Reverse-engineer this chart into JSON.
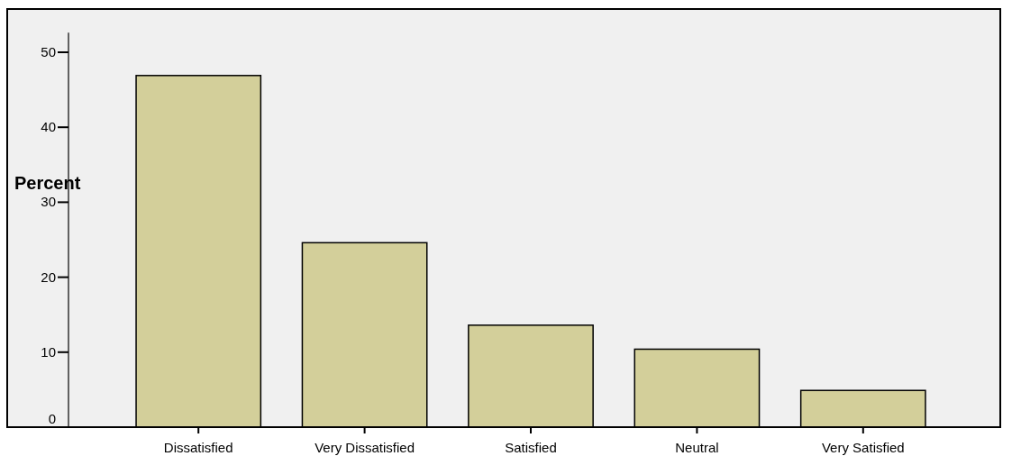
{
  "chart_data": {
    "type": "bar",
    "ylabel": "Percent",
    "categories": [
      "Dissatisfied",
      "Very Dissatisfied",
      "Satisfied",
      "Neutral",
      "Very Satisfied"
    ],
    "values": [
      46.9,
      24.6,
      13.6,
      10.4,
      4.9
    ],
    "color": "#d3cf9a",
    "ylim": [
      0,
      52.6
    ],
    "yticks": [
      0,
      10,
      20,
      30,
      40,
      50
    ],
    "grid": false
  }
}
